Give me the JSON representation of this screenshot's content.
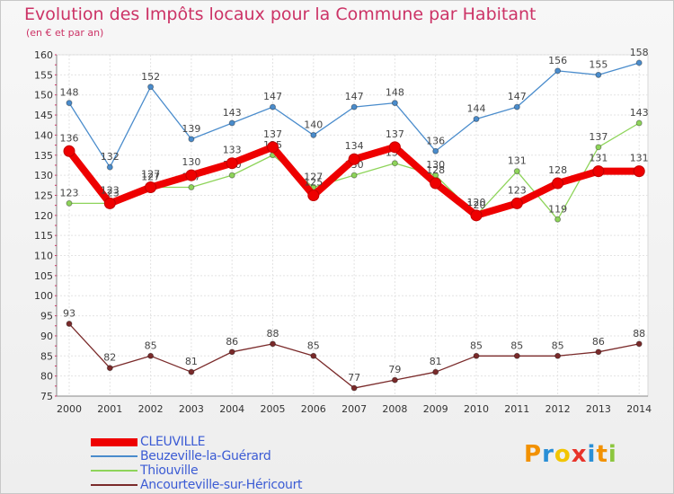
{
  "title": "Evolution des Impôts locaux pour la Commune par Habitant",
  "subtitle": "(en € et par an)",
  "logo": {
    "letters": [
      "P",
      "r",
      "o",
      "x",
      "i",
      "t",
      "i"
    ],
    "colors": [
      "#f29100",
      "#2a8fd6",
      "#f2c500",
      "#e8332a",
      "#2a8fd6",
      "#f29100",
      "#8cc63e"
    ]
  },
  "chart_data": {
    "type": "line",
    "title": "Evolution des Impôts locaux pour la Commune par Habitant",
    "ylabel": "(en € et par an)",
    "xlabel": "",
    "x": [
      "2000",
      "2001",
      "2002",
      "2003",
      "2004",
      "2005",
      "2006",
      "2007",
      "2008",
      "2009",
      "2010",
      "2011",
      "2012",
      "2013",
      "2014"
    ],
    "ylim": [
      75,
      160
    ],
    "yticks": [
      "75",
      "80",
      "85",
      "90",
      "95",
      "100",
      "105",
      "110",
      "115",
      "120",
      "125",
      "130",
      "135",
      "140",
      "145",
      "150",
      "155",
      "160"
    ],
    "grid": true,
    "series": [
      {
        "name": "Beuzeville-la-Guérard",
        "color": "#4a8ccc",
        "values": [
          148,
          132,
          152,
          139,
          143,
          147,
          140,
          147,
          148,
          136,
          144,
          147,
          156,
          155,
          158
        ],
        "labels": [
          "148",
          "132",
          "152",
          "139",
          "143",
          "147",
          "140",
          "147",
          "148",
          "136",
          "144",
          "147",
          "156",
          "155",
          "158"
        ]
      },
      {
        "name": "Thiouville",
        "color": "#8ed45a",
        "values": [
          123,
          123,
          127,
          127,
          130,
          135,
          127,
          130,
          133,
          130,
          120,
          131,
          119,
          137,
          143
        ],
        "labels": [
          "123",
          "123",
          "127",
          "127",
          "130",
          "135",
          "127",
          "130",
          "133",
          "130",
          "120",
          "131",
          "119",
          "137",
          "143"
        ]
      },
      {
        "name": "Ancourteville-sur-Héricourt",
        "color": "#7a2a2a",
        "values": [
          93,
          82,
          85,
          81,
          86,
          88,
          85,
          77,
          79,
          81,
          85,
          85,
          85,
          86,
          88
        ],
        "labels": [
          "93",
          "82",
          "85",
          "81",
          "86",
          "88",
          "85",
          "77",
          "79",
          "81",
          "85",
          "85",
          "85",
          "86",
          "88"
        ]
      },
      {
        "name": "CLEUVILLE",
        "color": "#ee0000",
        "values": [
          136,
          123,
          127,
          130,
          133,
          137,
          125,
          134,
          137,
          128,
          120,
          123,
          128,
          131,
          131
        ],
        "labels": [
          "136",
          "123",
          "127",
          "130",
          "133",
          "137",
          "125",
          "134",
          "137",
          "128",
          "120",
          "123",
          "128",
          "131",
          "131"
        ]
      }
    ],
    "legend": [
      "CLEUVILLE",
      "Beuzeville-la-Guérard",
      "Thiouville",
      "Ancourteville-sur-Héricourt"
    ],
    "legend_position": "bottom-left"
  }
}
